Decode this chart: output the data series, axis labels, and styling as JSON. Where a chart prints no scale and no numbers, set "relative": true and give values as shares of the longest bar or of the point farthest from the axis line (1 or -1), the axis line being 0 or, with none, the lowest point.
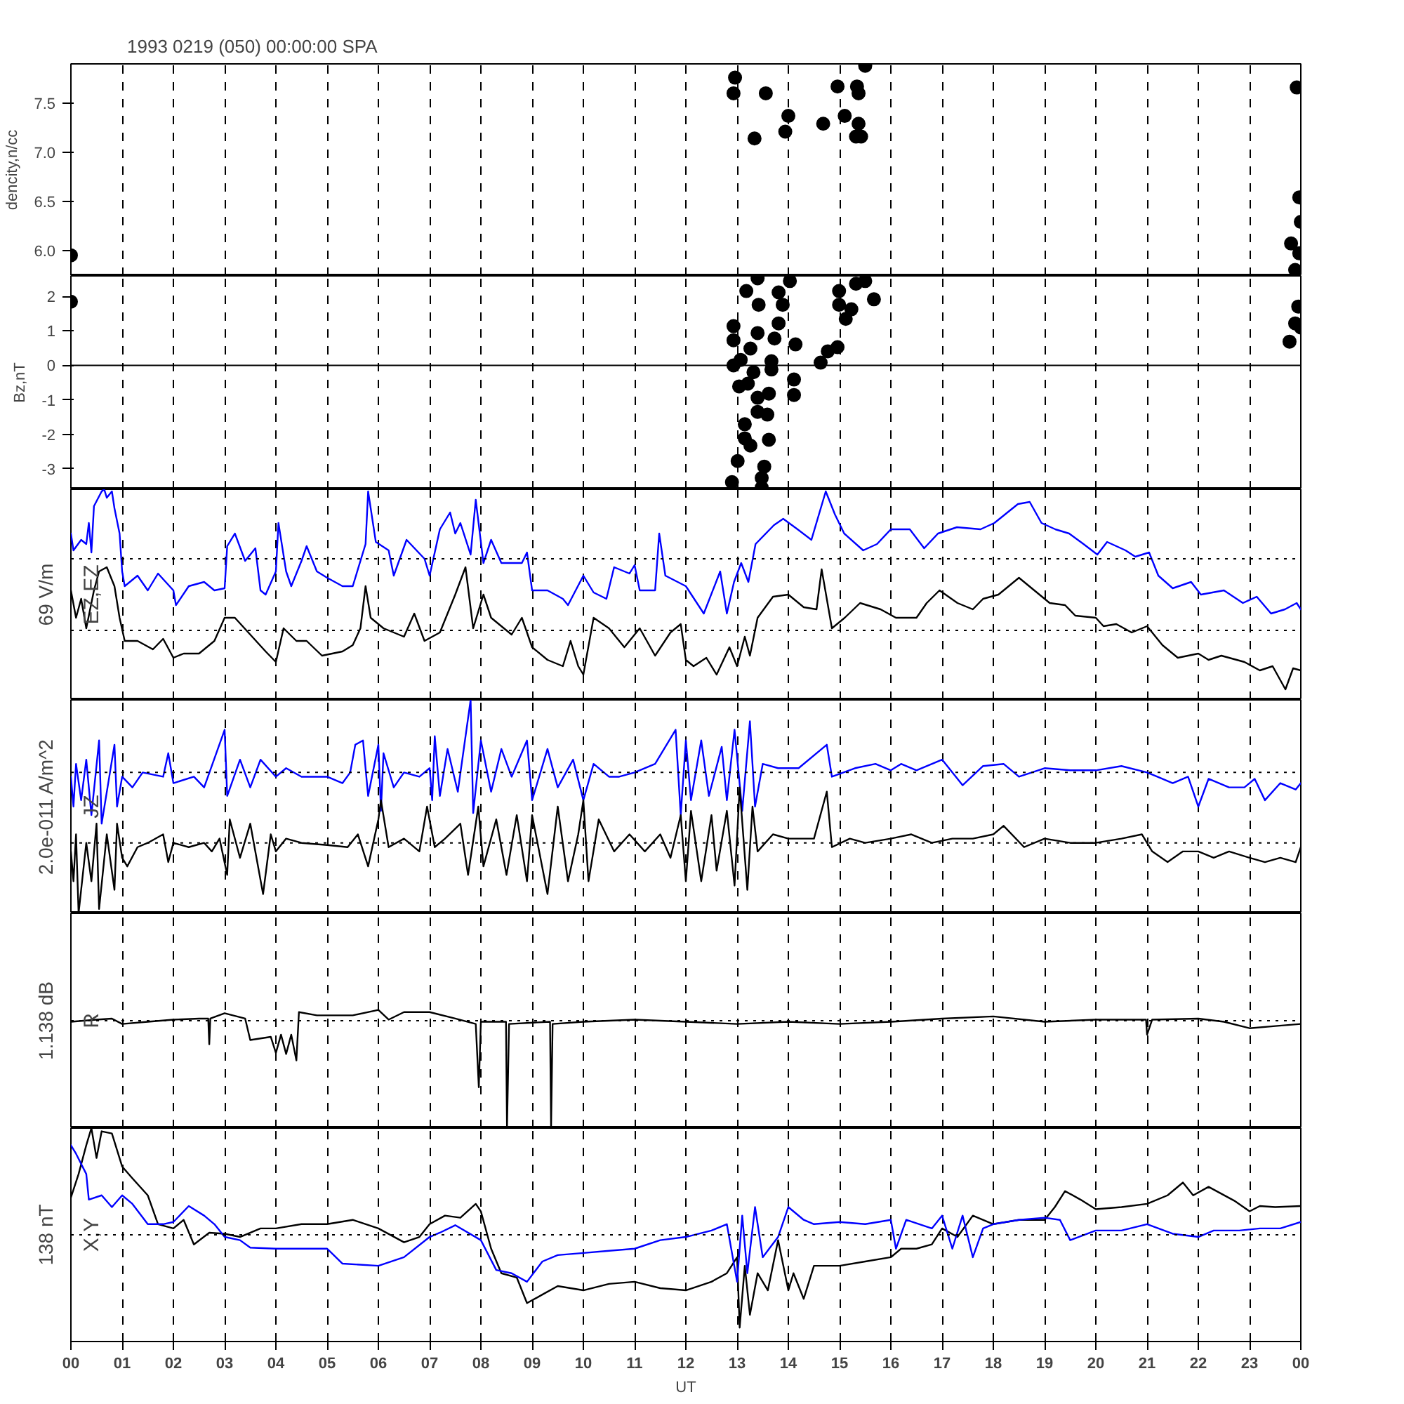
{
  "chart_data": [
    {
      "type": "scatter",
      "title": "1993 0219 (050) 00:00:00 SPA",
      "ylabel": "dencity,n/cc",
      "marker": "circle",
      "grid": "x",
      "tick_labels": "y",
      "xlim": [
        0,
        24
      ],
      "xticks": [
        0,
        1,
        2,
        3,
        4,
        5,
        6,
        7,
        8,
        9,
        10,
        11,
        12,
        13,
        14,
        15,
        16,
        17,
        18,
        19,
        20,
        21,
        22,
        23,
        24
      ],
      "ylim": [
        5.74,
        7.9
      ],
      "yticks": [
        {
          "value": 6,
          "label": "6.0"
        },
        6.5,
        {
          "value": 7,
          "label": "7.0"
        },
        7.5
      ],
      "series": [
        {
          "color": "#000000",
          "x": [
            0.0,
            12.93,
            12.96,
            13.34,
            13.56,
            13.94,
            14.0,
            14.68,
            14.96,
            15.1,
            15.32,
            15.34,
            15.37,
            15.37,
            15.42,
            15.5,
            23.81,
            23.89,
            23.92,
            23.97,
            23.97,
            24.0
          ],
          "values": [
            5.95,
            7.6,
            7.76,
            7.14,
            7.6,
            7.21,
            7.37,
            7.29,
            7.67,
            7.37,
            7.16,
            7.67,
            7.6,
            7.29,
            7.16,
            7.88,
            6.07,
            5.8,
            7.66,
            6.54,
            5.97,
            6.29
          ]
        }
      ]
    },
    {
      "type": "scatter",
      "ylabel": "Bz,nT",
      "marker": "circle",
      "grid": "x",
      "tick_labels": "y",
      "xlim": [
        0,
        24
      ],
      "xticks": [
        0,
        1,
        2,
        3,
        4,
        5,
        6,
        7,
        8,
        9,
        10,
        11,
        12,
        13,
        14,
        15,
        16,
        17,
        18,
        19,
        20,
        21,
        22,
        23,
        24
      ],
      "ylim": [
        -3.6,
        2.6
      ],
      "yticks": [
        -3,
        -2,
        -1,
        0,
        1,
        2
      ],
      "ref_lines": [
        {
          "axis": "y",
          "value": 0,
          "line_style": "solid",
          "color": "#000000"
        }
      ],
      "series": [
        {
          "color": "#000000",
          "x": [
            0.0,
            12.9,
            12.93,
            12.93,
            12.93,
            13.01,
            13.04,
            13.07,
            13.15,
            13.15,
            13.18,
            13.21,
            13.26,
            13.26,
            13.32,
            13.4,
            13.42,
            13.4,
            13.4,
            13.4,
            13.48,
            13.48,
            13.53,
            13.59,
            13.62,
            13.62,
            13.67,
            13.67,
            13.73,
            13.81,
            13.81,
            13.89,
            14.03,
            14.11,
            14.11,
            14.14,
            14.63,
            14.77,
            14.96,
            14.99,
            14.99,
            15.12,
            15.23,
            15.32,
            15.5,
            15.67,
            23.78,
            23.89,
            23.95,
            24.0
          ],
          "values": [
            1.85,
            -3.39,
            1.14,
            0.73,
            0.0,
            -2.78,
            -0.61,
            0.16,
            -1.71,
            -2.12,
            2.16,
            -0.53,
            0.49,
            -2.33,
            -0.2,
            2.53,
            1.76,
            0.94,
            -0.94,
            -1.35,
            -3.27,
            -3.55,
            -2.94,
            -1.43,
            -0.82,
            -2.16,
            0.12,
            -0.12,
            0.78,
            2.12,
            1.22,
            1.76,
            2.45,
            -0.41,
            -0.86,
            0.61,
            0.08,
            0.41,
            0.53,
            2.16,
            1.76,
            1.35,
            1.63,
            2.37,
            2.45,
            1.92,
            0.69,
            1.22,
            1.71,
            1.1
          ]
        }
      ]
    },
    {
      "type": "line",
      "relative": true,
      "ylabel": "EZ,EZ",
      "annotations": [
        "69 V/m"
      ],
      "grid": "x",
      "tick_labels": false,
      "xlim": [
        0,
        24
      ],
      "xticks": [
        0,
        1,
        2,
        3,
        4,
        5,
        6,
        7,
        8,
        9,
        10,
        11,
        12,
        13,
        14,
        15,
        16,
        17,
        18,
        19,
        20,
        21,
        22,
        23,
        24
      ],
      "ref_lines": [
        {
          "axis": "y",
          "value": 0.67,
          "line_style": "dotted",
          "color": "#000000"
        },
        {
          "axis": "y",
          "value": 0.33,
          "line_style": "dotted",
          "color": "#000000"
        }
      ],
      "series": [
        {
          "color": "#0000ff",
          "x": [
            0.0,
            0.05,
            0.2,
            0.3,
            0.35,
            0.4,
            0.45,
            0.6,
            0.65,
            0.7,
            0.8,
            0.85,
            0.95,
            1.0,
            1.05,
            1.3,
            1.5,
            1.7,
            2.0,
            2.05,
            2.3,
            2.6,
            2.8,
            3.0,
            3.05,
            3.2,
            3.4,
            3.6,
            3.7,
            3.8,
            4.0,
            4.05,
            4.2,
            4.3,
            4.5,
            4.6,
            4.8,
            5.0,
            5.3,
            5.5,
            5.75,
            5.8,
            5.95,
            6.2,
            6.3,
            6.55,
            6.9,
            7.0,
            7.2,
            7.4,
            7.5,
            7.6,
            7.8,
            7.9,
            8.05,
            8.2,
            8.4,
            8.8,
            8.9,
            9.0,
            9.3,
            9.6,
            9.7,
            10.0,
            10.2,
            10.45,
            10.6,
            10.9,
            11.0,
            11.1,
            11.4,
            11.48,
            11.6,
            12.0,
            12.35,
            12.67,
            12.8,
            12.94,
            13.08,
            13.22,
            13.36,
            13.72,
            13.9,
            14.18,
            14.45,
            14.73,
            14.91,
            15.09,
            15.46,
            15.73,
            16.0,
            16.37,
            16.65,
            16.92,
            17.29,
            17.75,
            18.02,
            18.48,
            18.71,
            18.94,
            19.21,
            19.48,
            19.76,
            20.03,
            20.22,
            20.58,
            20.77,
            21.04,
            21.22,
            21.5,
            21.86,
            22.05,
            22.5,
            22.87,
            23.14,
            23.42,
            23.69,
            23.92,
            24.0
          ],
          "values": [
            0.79,
            0.71,
            0.76,
            0.74,
            0.84,
            0.7,
            0.92,
            0.99,
            1.0,
            0.96,
            0.99,
            0.91,
            0.79,
            0.61,
            0.54,
            0.59,
            0.52,
            0.6,
            0.52,
            0.45,
            0.54,
            0.56,
            0.52,
            0.53,
            0.73,
            0.79,
            0.66,
            0.72,
            0.52,
            0.5,
            0.61,
            0.84,
            0.61,
            0.54,
            0.66,
            0.73,
            0.61,
            0.58,
            0.54,
            0.54,
            0.74,
            0.99,
            0.75,
            0.71,
            0.59,
            0.76,
            0.67,
            0.59,
            0.81,
            0.89,
            0.79,
            0.84,
            0.69,
            0.95,
            0.65,
            0.76,
            0.65,
            0.65,
            0.7,
            0.52,
            0.52,
            0.48,
            0.45,
            0.59,
            0.51,
            0.48,
            0.63,
            0.6,
            0.64,
            0.52,
            0.52,
            0.79,
            0.59,
            0.54,
            0.41,
            0.61,
            0.41,
            0.56,
            0.65,
            0.56,
            0.74,
            0.83,
            0.86,
            0.81,
            0.76,
            0.99,
            0.88,
            0.79,
            0.71,
            0.74,
            0.81,
            0.81,
            0.72,
            0.79,
            0.82,
            0.81,
            0.84,
            0.93,
            0.94,
            0.84,
            0.81,
            0.79,
            0.74,
            0.69,
            0.75,
            0.71,
            0.68,
            0.7,
            0.59,
            0.53,
            0.56,
            0.5,
            0.52,
            0.46,
            0.49,
            0.41,
            0.43,
            0.46,
            0.43
          ]
        },
        {
          "color": "#000000",
          "x": [
            0.0,
            0.1,
            0.2,
            0.3,
            0.45,
            0.55,
            0.7,
            0.85,
            0.95,
            1.05,
            1.3,
            1.6,
            1.8,
            2.0,
            2.2,
            2.5,
            2.8,
            3.0,
            3.2,
            3.5,
            3.8,
            4.0,
            4.15,
            4.4,
            4.6,
            4.9,
            5.3,
            5.5,
            5.65,
            5.75,
            5.85,
            6.1,
            6.5,
            6.7,
            6.9,
            7.2,
            7.5,
            7.7,
            7.85,
            8.05,
            8.2,
            8.6,
            8.8,
            9.0,
            9.3,
            9.6,
            9.75,
            9.9,
            10.0,
            10.2,
            10.5,
            10.8,
            11.1,
            11.4,
            11.7,
            11.9,
            12.0,
            12.15,
            12.4,
            12.6,
            12.85,
            13.0,
            13.15,
            13.25,
            13.4,
            13.7,
            14.0,
            14.3,
            14.55,
            14.65,
            14.85,
            15.1,
            15.4,
            15.8,
            16.1,
            16.25,
            16.5,
            16.7,
            16.95,
            17.3,
            17.6,
            17.8,
            18.1,
            18.5,
            18.8,
            19.1,
            19.4,
            19.6,
            20.0,
            20.15,
            20.4,
            20.7,
            21.0,
            21.3,
            21.6,
            22.0,
            22.2,
            22.45,
            22.9,
            23.2,
            23.45,
            23.7,
            23.85,
            24.0
          ],
          "values": [
            0.52,
            0.39,
            0.48,
            0.34,
            0.52,
            0.61,
            0.63,
            0.54,
            0.39,
            0.28,
            0.28,
            0.24,
            0.29,
            0.2,
            0.22,
            0.22,
            0.28,
            0.39,
            0.39,
            0.31,
            0.23,
            0.18,
            0.34,
            0.28,
            0.28,
            0.21,
            0.23,
            0.26,
            0.34,
            0.54,
            0.39,
            0.34,
            0.3,
            0.41,
            0.28,
            0.32,
            0.5,
            0.63,
            0.34,
            0.5,
            0.39,
            0.31,
            0.39,
            0.25,
            0.19,
            0.16,
            0.28,
            0.16,
            0.12,
            0.39,
            0.34,
            0.25,
            0.34,
            0.21,
            0.32,
            0.36,
            0.19,
            0.16,
            0.2,
            0.12,
            0.25,
            0.16,
            0.3,
            0.21,
            0.39,
            0.49,
            0.5,
            0.44,
            0.43,
            0.62,
            0.34,
            0.39,
            0.46,
            0.43,
            0.39,
            0.39,
            0.39,
            0.46,
            0.52,
            0.46,
            0.43,
            0.48,
            0.5,
            0.58,
            0.52,
            0.46,
            0.45,
            0.4,
            0.39,
            0.35,
            0.36,
            0.32,
            0.35,
            0.26,
            0.2,
            0.22,
            0.19,
            0.21,
            0.18,
            0.14,
            0.16,
            0.05,
            0.15,
            0.14
          ]
        }
      ]
    },
    {
      "type": "line",
      "relative": true,
      "ylabel": "JZ",
      "annotations": [
        "2.0e-011 A/m^2"
      ],
      "grid": "x",
      "tick_labels": false,
      "xlim": [
        0,
        24
      ],
      "xticks": [
        0,
        1,
        2,
        3,
        4,
        5,
        6,
        7,
        8,
        9,
        10,
        11,
        12,
        13,
        14,
        15,
        16,
        17,
        18,
        19,
        20,
        21,
        22,
        23,
        24
      ],
      "ref_lines": [
        {
          "axis": "y",
          "value": 0.66,
          "line_style": "dotted",
          "color": "#000000"
        },
        {
          "axis": "y",
          "value": 0.33,
          "line_style": "dotted",
          "color": "#000000"
        }
      ],
      "series": [
        {
          "color": "#0000ff",
          "x": [
            0.0,
            0.05,
            0.1,
            0.2,
            0.3,
            0.4,
            0.55,
            0.6,
            0.85,
            0.9,
            1.0,
            1.2,
            1.4,
            1.8,
            1.9,
            2.0,
            2.4,
            2.6,
            3.0,
            3.05,
            3.3,
            3.5,
            3.7,
            4.0,
            4.2,
            4.5,
            5.0,
            5.3,
            5.45,
            5.55,
            5.7,
            5.8,
            6.0,
            6.05,
            6.1,
            6.3,
            6.5,
            6.8,
            7.0,
            7.05,
            7.1,
            7.2,
            7.35,
            7.55,
            7.8,
            7.85,
            8.0,
            8.2,
            8.4,
            8.6,
            8.9,
            9.0,
            9.3,
            9.5,
            9.8,
            10.0,
            10.2,
            10.5,
            10.7,
            11.0,
            11.4,
            11.8,
            11.9,
            12.0,
            12.1,
            12.3,
            12.45,
            12.7,
            12.8,
            12.95,
            13.1,
            13.25,
            13.35,
            13.5,
            13.8,
            14.2,
            14.75,
            14.85,
            15.3,
            15.7,
            16.0,
            16.2,
            16.5,
            17.0,
            17.4,
            17.8,
            18.2,
            18.5,
            19.0,
            19.5,
            20.0,
            20.5,
            21.0,
            21.2,
            21.5,
            21.8,
            22.0,
            22.2,
            22.6,
            22.9,
            23.1,
            23.3,
            23.6,
            23.9,
            24.0
          ],
          "values": [
            0.64,
            0.5,
            0.7,
            0.53,
            0.72,
            0.46,
            0.81,
            0.42,
            0.79,
            0.5,
            0.64,
            0.59,
            0.66,
            0.64,
            0.75,
            0.61,
            0.64,
            0.59,
            0.86,
            0.55,
            0.72,
            0.59,
            0.72,
            0.64,
            0.68,
            0.64,
            0.64,
            0.61,
            0.66,
            0.79,
            0.81,
            0.55,
            0.79,
            0.48,
            0.75,
            0.59,
            0.66,
            0.64,
            0.68,
            0.53,
            0.83,
            0.55,
            0.77,
            0.57,
            1.0,
            0.47,
            0.81,
            0.57,
            0.77,
            0.64,
            0.81,
            0.53,
            0.77,
            0.59,
            0.72,
            0.53,
            0.7,
            0.64,
            0.64,
            0.66,
            0.7,
            0.86,
            0.46,
            0.81,
            0.53,
            0.81,
            0.55,
            0.78,
            0.53,
            0.86,
            0.48,
            0.9,
            0.5,
            0.7,
            0.68,
            0.68,
            0.79,
            0.64,
            0.68,
            0.7,
            0.67,
            0.7,
            0.67,
            0.72,
            0.6,
            0.69,
            0.7,
            0.64,
            0.68,
            0.67,
            0.67,
            0.69,
            0.66,
            0.64,
            0.61,
            0.64,
            0.5,
            0.63,
            0.59,
            0.59,
            0.63,
            0.53,
            0.61,
            0.58,
            0.61
          ]
        },
        {
          "color": "#000000",
          "x": [
            0.0,
            0.05,
            0.1,
            0.15,
            0.3,
            0.4,
            0.5,
            0.55,
            0.7,
            0.85,
            0.9,
            1.0,
            1.1,
            1.3,
            1.5,
            1.8,
            1.9,
            2.0,
            2.3,
            2.6,
            2.75,
            2.9,
            3.05,
            3.1,
            3.3,
            3.5,
            3.75,
            3.9,
            4.0,
            4.2,
            4.5,
            5.0,
            5.4,
            5.6,
            5.8,
            6.0,
            6.05,
            6.2,
            6.5,
            6.8,
            6.95,
            7.1,
            7.3,
            7.6,
            7.75,
            7.95,
            8.05,
            8.3,
            8.5,
            8.7,
            8.9,
            9.0,
            9.3,
            9.5,
            9.7,
            9.9,
            10.0,
            10.1,
            10.3,
            10.6,
            10.9,
            11.2,
            11.5,
            11.7,
            11.9,
            12.0,
            12.1,
            12.3,
            12.5,
            12.6,
            12.8,
            12.95,
            13.05,
            13.2,
            13.3,
            13.4,
            13.7,
            14.0,
            14.5,
            14.75,
            14.85,
            15.2,
            15.5,
            16.0,
            16.4,
            16.8,
            17.2,
            17.6,
            18.0,
            18.2,
            18.6,
            19.0,
            19.5,
            20.0,
            20.5,
            20.9,
            21.1,
            21.4,
            21.7,
            22.0,
            22.3,
            22.6,
            23.0,
            23.3,
            23.6,
            23.9,
            24.0
          ],
          "values": [
            0.29,
            0.15,
            0.37,
            0.0,
            0.33,
            0.15,
            0.42,
            0.02,
            0.37,
            0.11,
            0.42,
            0.26,
            0.22,
            0.31,
            0.33,
            0.37,
            0.24,
            0.33,
            0.31,
            0.33,
            0.29,
            0.35,
            0.18,
            0.44,
            0.26,
            0.42,
            0.09,
            0.37,
            0.29,
            0.35,
            0.33,
            0.32,
            0.31,
            0.37,
            0.22,
            0.44,
            0.53,
            0.31,
            0.35,
            0.29,
            0.5,
            0.31,
            0.35,
            0.42,
            0.18,
            0.5,
            0.22,
            0.44,
            0.18,
            0.46,
            0.15,
            0.46,
            0.09,
            0.5,
            0.15,
            0.37,
            0.53,
            0.15,
            0.44,
            0.29,
            0.37,
            0.29,
            0.37,
            0.26,
            0.46,
            0.15,
            0.48,
            0.15,
            0.46,
            0.2,
            0.48,
            0.13,
            0.59,
            0.11,
            0.5,
            0.29,
            0.37,
            0.35,
            0.35,
            0.57,
            0.31,
            0.35,
            0.33,
            0.35,
            0.37,
            0.33,
            0.35,
            0.35,
            0.37,
            0.41,
            0.31,
            0.35,
            0.33,
            0.33,
            0.35,
            0.37,
            0.29,
            0.24,
            0.29,
            0.29,
            0.26,
            0.29,
            0.26,
            0.24,
            0.26,
            0.24,
            0.31
          ]
        }
      ]
    },
    {
      "type": "line",
      "relative": true,
      "ylabel": "R",
      "annotations": [
        "1.138 dB"
      ],
      "grid": "x",
      "tick_labels": false,
      "xlim": [
        0,
        24
      ],
      "xticks": [
        0,
        1,
        2,
        3,
        4,
        5,
        6,
        7,
        8,
        9,
        10,
        11,
        12,
        13,
        14,
        15,
        16,
        17,
        18,
        19,
        20,
        21,
        22,
        23,
        24
      ],
      "ref_lines": [
        {
          "axis": "y",
          "value": 0,
          "line_style": "dotted",
          "color": "#000000"
        }
      ],
      "series": [
        {
          "color": "#000000",
          "x": [
            0.0,
            0.5,
            0.8,
            1.0,
            1.5,
            2.0,
            2.5,
            2.68,
            2.7,
            2.72,
            3.0,
            3.4,
            3.5,
            3.9,
            4.0,
            4.1,
            4.2,
            4.3,
            4.4,
            4.45,
            4.8,
            5.5,
            6.0,
            6.2,
            6.5,
            7.0,
            7.5,
            7.9,
            7.96,
            8.0,
            8.49,
            8.51,
            8.55,
            9.35,
            9.37,
            9.4,
            10.0,
            11.0,
            12.0,
            13.0,
            14.0,
            15.0,
            16.0,
            17.0,
            18.0,
            19.0,
            20.0,
            20.98,
            21.0,
            21.1,
            22.0,
            22.5,
            23.0,
            23.5,
            24.0
          ],
          "values": [
            -0.01,
            0.01,
            0.02,
            -0.03,
            -0.01,
            0.01,
            0.02,
            0.02,
            -0.22,
            0.02,
            0.07,
            0.02,
            -0.18,
            -0.15,
            -0.3,
            -0.13,
            -0.31,
            -0.13,
            -0.37,
            0.08,
            0.05,
            0.05,
            0.1,
            0.01,
            0.08,
            0.08,
            0.02,
            -0.03,
            -0.62,
            -0.01,
            -0.01,
            -1.0,
            -0.03,
            -0.01,
            -1.0,
            -0.03,
            -0.01,
            0.01,
            -0.01,
            -0.03,
            -0.01,
            -0.03,
            -0.01,
            0.02,
            0.04,
            -0.01,
            0.01,
            0.01,
            -0.13,
            0.01,
            0.02,
            -0.01,
            -0.07,
            -0.05,
            -0.03
          ]
        }
      ]
    },
    {
      "type": "line",
      "relative": true,
      "ylabel": "X,Y",
      "xlabel": "UT",
      "annotations": [
        "138 nT"
      ],
      "grid": "x",
      "tick_labels": "x",
      "xlim": [
        0,
        24
      ],
      "xticks": [
        {
          "value": 0,
          "label": "00"
        },
        {
          "value": 1,
          "label": "01"
        },
        {
          "value": 2,
          "label": "02"
        },
        {
          "value": 3,
          "label": "03"
        },
        {
          "value": 4,
          "label": "04"
        },
        {
          "value": 5,
          "label": "05"
        },
        {
          "value": 6,
          "label": "06"
        },
        {
          "value": 7,
          "label": "07"
        },
        {
          "value": 8,
          "label": "08"
        },
        {
          "value": 9,
          "label": "09"
        },
        {
          "value": 10,
          "label": "10"
        },
        {
          "value": 11,
          "label": "11"
        },
        {
          "value": 12,
          "label": "12"
        },
        {
          "value": 13,
          "label": "13"
        },
        {
          "value": 14,
          "label": "14"
        },
        {
          "value": 15,
          "label": "15"
        },
        {
          "value": 16,
          "label": "16"
        },
        {
          "value": 17,
          "label": "17"
        },
        {
          "value": 18,
          "label": "18"
        },
        {
          "value": 19,
          "label": "19"
        },
        {
          "value": 20,
          "label": "20"
        },
        {
          "value": 21,
          "label": "21"
        },
        {
          "value": 22,
          "label": "22"
        },
        {
          "value": 23,
          "label": "23"
        },
        {
          "value": 24,
          "label": "00"
        }
      ],
      "ref_lines": [
        {
          "axis": "y",
          "value": 0,
          "line_style": "dotted",
          "color": "#000000"
        }
      ],
      "series": [
        {
          "color": "#000000",
          "x": [
            0.0,
            0.15,
            0.3,
            0.4,
            0.5,
            0.6,
            0.8,
            1.0,
            1.2,
            1.5,
            1.7,
            2.0,
            2.2,
            2.4,
            2.7,
            3.0,
            3.3,
            3.7,
            4.0,
            4.5,
            5.0,
            5.5,
            6.0,
            6.5,
            6.8,
            7.0,
            7.3,
            7.6,
            7.9,
            8.0,
            8.2,
            8.4,
            8.7,
            8.9,
            9.2,
            9.5,
            10.0,
            10.5,
            11.0,
            11.5,
            12.0,
            12.5,
            12.8,
            13.0,
            13.05,
            13.15,
            13.25,
            13.4,
            13.6,
            13.8,
            14.0,
            14.1,
            14.3,
            14.5,
            15.0,
            15.5,
            16.0,
            16.2,
            16.5,
            16.8,
            17.0,
            17.3,
            17.6,
            18.0,
            18.5,
            19.0,
            19.2,
            19.4,
            19.7,
            20.0,
            20.5,
            21.0,
            21.4,
            21.7,
            21.9,
            22.2,
            22.7,
            23.0,
            23.2,
            23.5,
            24.0
          ],
          "values": [
            0.35,
            0.57,
            0.84,
            1.0,
            0.72,
            0.97,
            0.95,
            0.64,
            0.53,
            0.37,
            0.1,
            0.06,
            0.14,
            -0.09,
            0.02,
            0.01,
            -0.02,
            0.06,
            0.06,
            0.1,
            0.1,
            0.14,
            0.06,
            -0.07,
            -0.02,
            0.1,
            0.18,
            0.16,
            0.29,
            0.22,
            -0.13,
            -0.36,
            -0.4,
            -0.64,
            -0.56,
            -0.48,
            -0.52,
            -0.46,
            -0.44,
            -0.5,
            -0.52,
            -0.44,
            -0.36,
            -0.21,
            -0.87,
            -0.29,
            -0.75,
            -0.36,
            -0.52,
            -0.05,
            -0.52,
            -0.36,
            -0.6,
            -0.29,
            -0.29,
            -0.25,
            -0.21,
            -0.13,
            -0.13,
            -0.09,
            0.06,
            -0.02,
            0.18,
            0.1,
            0.14,
            0.14,
            0.26,
            0.41,
            0.33,
            0.24,
            0.26,
            0.29,
            0.37,
            0.49,
            0.37,
            0.45,
            0.32,
            0.22,
            0.27,
            0.26,
            0.27
          ]
        },
        {
          "color": "#0000ff",
          "x": [
            0.0,
            0.1,
            0.3,
            0.35,
            0.6,
            0.8,
            1.0,
            1.2,
            1.5,
            1.8,
            2.0,
            2.3,
            2.6,
            2.8,
            3.0,
            3.3,
            3.5,
            4.0,
            4.5,
            5.0,
            5.3,
            6.0,
            6.5,
            7.0,
            7.2,
            7.5,
            8.0,
            8.3,
            8.6,
            8.9,
            9.2,
            9.5,
            10.0,
            10.5,
            11.0,
            11.5,
            12.0,
            12.5,
            12.8,
            13.0,
            13.1,
            13.2,
            13.35,
            13.5,
            13.8,
            14.0,
            14.3,
            14.5,
            15.0,
            15.5,
            16.0,
            16.1,
            16.3,
            16.8,
            17.0,
            17.2,
            17.4,
            17.6,
            17.8,
            18.0,
            18.5,
            19.0,
            19.3,
            19.5,
            20.0,
            20.5,
            21.0,
            21.5,
            22.0,
            22.3,
            22.8,
            23.2,
            23.6,
            24.0
          ],
          "values": [
            0.84,
            0.76,
            0.57,
            0.33,
            0.37,
            0.26,
            0.37,
            0.29,
            0.1,
            0.1,
            0.12,
            0.27,
            0.18,
            0.1,
            -0.02,
            -0.05,
            -0.12,
            -0.13,
            -0.13,
            -0.13,
            -0.27,
            -0.29,
            -0.21,
            -0.02,
            0.02,
            0.09,
            -0.05,
            -0.33,
            -0.36,
            -0.44,
            -0.25,
            -0.19,
            -0.17,
            -0.15,
            -0.13,
            -0.05,
            -0.02,
            0.04,
            0.1,
            -0.44,
            0.18,
            -0.36,
            0.26,
            -0.21,
            -0.02,
            0.26,
            0.14,
            0.1,
            0.12,
            0.1,
            0.14,
            -0.13,
            0.14,
            0.06,
            0.18,
            -0.13,
            0.18,
            -0.21,
            0.06,
            0.1,
            0.14,
            0.16,
            0.14,
            -0.05,
            0.04,
            0.04,
            0.1,
            0.01,
            -0.02,
            0.04,
            0.04,
            0.06,
            0.06,
            0.12
          ]
        }
      ]
    }
  ]
}
